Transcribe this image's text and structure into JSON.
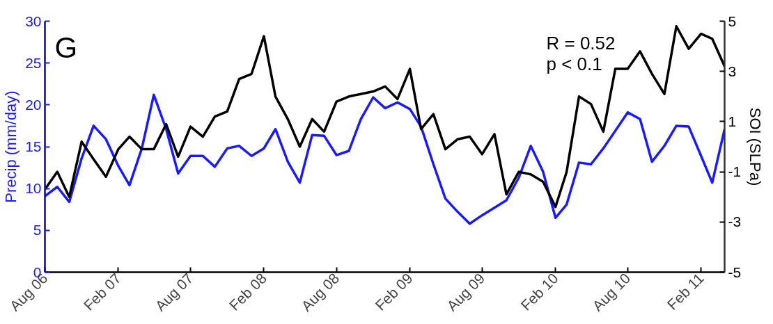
{
  "chart_data": {
    "type": "line",
    "xlabel": null,
    "ylabel": "Precip (mm/day)",
    "y2label": "SOI (SLPa)",
    "x": [
      "2006-08",
      "2006-09",
      "2006-10",
      "2006-11",
      "2006-12",
      "2007-01",
      "2007-02",
      "2007-03",
      "2007-04",
      "2007-05",
      "2007-06",
      "2007-07",
      "2007-08",
      "2007-09",
      "2007-10",
      "2007-11",
      "2007-12",
      "2008-01",
      "2008-02",
      "2008-03",
      "2008-04",
      "2008-05",
      "2008-06",
      "2008-07",
      "2008-08",
      "2008-09",
      "2008-10",
      "2008-11",
      "2008-12",
      "2009-01",
      "2009-02",
      "2009-03",
      "2009-04",
      "2009-05",
      "2009-06",
      "2009-07",
      "2009-08",
      "2009-09",
      "2009-10",
      "2009-11",
      "2009-12",
      "2010-01",
      "2010-02",
      "2010-03",
      "2010-04",
      "2010-05",
      "2010-06",
      "2010-07",
      "2010-08",
      "2010-09",
      "2010-10",
      "2010-11",
      "2010-12",
      "2011-01",
      "2011-02",
      "2011-03",
      "2011-04"
    ],
    "series": [
      {
        "color": "#1a1aff",
        "values": [
          9.1,
          10.2,
          8.4,
          13.6,
          17.5,
          15.9,
          12.7,
          10.4,
          14.8,
          21.2,
          17.1,
          11.8,
          13.9,
          13.9,
          12.6,
          14.8,
          15.1,
          13.9,
          14.8,
          17.1,
          13.2,
          10.7,
          16.4,
          16.3,
          14.0,
          14.5,
          18.3,
          20.9,
          19.6,
          20.3,
          19.5,
          17.4,
          12.9,
          8.8,
          7.2,
          5.8,
          6.8,
          7.7,
          8.6,
          11.3,
          15.1,
          12.0,
          6.5,
          8.1,
          13.1,
          12.9,
          14.8,
          16.9,
          19.1,
          18.3,
          13.2,
          15.1,
          17.5,
          17.4,
          13.9,
          10.7,
          17.1
        ]
      },
      {
        "color": "#000000",
        "axis": "y2",
        "values": [
          -1.7,
          -1.0,
          -2.0,
          0.2,
          -0.5,
          -1.2,
          -0.1,
          0.4,
          -0.1,
          -0.1,
          0.9,
          -0.4,
          0.8,
          0.4,
          1.2,
          1.4,
          2.7,
          2.9,
          4.4,
          2.0,
          1.1,
          0.0,
          1.1,
          0.6,
          1.8,
          2.0,
          2.1,
          2.2,
          2.4,
          1.9,
          3.1,
          0.7,
          1.3,
          -0.1,
          0.3,
          0.4,
          -0.3,
          0.5,
          -1.9,
          -1.0,
          -1.1,
          -1.4,
          -2.4,
          -1.0,
          2.0,
          1.7,
          0.6,
          3.1,
          3.1,
          3.8,
          2.9,
          2.1,
          4.8,
          3.9,
          4.5,
          4.3,
          3.2
        ]
      }
    ],
    "xlim": [
      "2006-08",
      "2011-04"
    ],
    "xticks": [
      {
        "value": "2006-08",
        "label": "Aug 06"
      },
      {
        "value": "2007-02",
        "label": "Feb 07"
      },
      {
        "value": "2007-08",
        "label": "Aug 07"
      },
      {
        "value": "2008-02",
        "label": "Feb 08"
      },
      {
        "value": "2008-08",
        "label": "Aug 08"
      },
      {
        "value": "2009-02",
        "label": "Feb 09"
      },
      {
        "value": "2009-08",
        "label": "Aug 09"
      },
      {
        "value": "2010-02",
        "label": "Feb 10"
      },
      {
        "value": "2010-08",
        "label": "Aug 10"
      },
      {
        "value": "2011-02",
        "label": "Feb 11"
      }
    ],
    "ylim": [
      0,
      30
    ],
    "yticks": [
      0,
      5,
      10,
      15,
      20,
      25,
      30
    ],
    "y2lim": [
      -5,
      5
    ],
    "y2ticks": [
      -5,
      -3,
      -1,
      1,
      3,
      5
    ],
    "grid": false,
    "marker": "none",
    "line_style": "solid",
    "annotations": [
      "G",
      "R = 0.52",
      "p < 0.1"
    ]
  }
}
